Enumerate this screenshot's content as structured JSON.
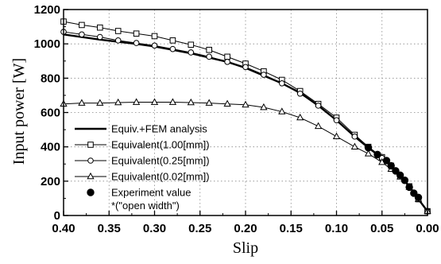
{
  "chart_data": {
    "type": "line",
    "xlabel": "Slip",
    "ylabel": "Input power [W]",
    "xlim": [
      0.4,
      0.0
    ],
    "ylim": [
      0,
      1200
    ],
    "x_reversed": true,
    "x_ticks": [
      "0.40",
      "0.35",
      "0.30",
      "0.25",
      "0.20",
      "0.15",
      "0.10",
      "0.05",
      "0.00"
    ],
    "y_ticks": [
      "0",
      "200",
      "400",
      "600",
      "800",
      "1000",
      "1200"
    ],
    "grid": "dotted",
    "legend_placement": "lower-left",
    "legend_note": "*(\"open width\")",
    "series": [
      {
        "name": "Equiv.+FEM analysis",
        "marker": "none",
        "x": [
          0.4,
          0.38,
          0.36,
          0.34,
          0.32,
          0.3,
          0.28,
          0.26,
          0.24,
          0.22,
          0.2,
          0.18,
          0.16,
          0.14,
          0.12,
          0.1,
          0.08,
          0.065,
          0.05,
          0.04,
          0.03,
          0.02,
          0.01,
          0.0
        ],
        "y": [
          1055,
          1040,
          1025,
          1012,
          1000,
          985,
          965,
          945,
          920,
          895,
          860,
          815,
          770,
          715,
          640,
          555,
          460,
          395,
          335,
          290,
          235,
          170,
          95,
          25
        ]
      },
      {
        "name": "Equivalent(1.00[mm])",
        "marker": "square",
        "x": [
          0.4,
          0.38,
          0.36,
          0.34,
          0.32,
          0.3,
          0.28,
          0.26,
          0.24,
          0.22,
          0.2,
          0.18,
          0.16,
          0.14,
          0.12,
          0.1,
          0.08,
          0.065,
          0.05,
          0.04,
          0.03,
          0.02,
          0.01,
          0.0
        ],
        "y": [
          1130,
          1110,
          1095,
          1075,
          1060,
          1045,
          1020,
          995,
          965,
          925,
          885,
          840,
          790,
          725,
          650,
          570,
          470,
          400,
          340,
          290,
          230,
          170,
          95,
          25
        ]
      },
      {
        "name": "Equivalent(0.25[mm])",
        "marker": "circle",
        "x": [
          0.4,
          0.38,
          0.36,
          0.34,
          0.32,
          0.3,
          0.28,
          0.26,
          0.24,
          0.22,
          0.2,
          0.18,
          0.16,
          0.14,
          0.12,
          0.1,
          0.08,
          0.065,
          0.05,
          0.04,
          0.03,
          0.02,
          0.01,
          0.0
        ],
        "y": [
          1070,
          1055,
          1040,
          1020,
          1005,
          990,
          970,
          950,
          925,
          895,
          865,
          820,
          770,
          710,
          640,
          555,
          460,
          395,
          335,
          290,
          235,
          170,
          95,
          25
        ]
      },
      {
        "name": "Equivalent(0.02[mm])",
        "marker": "triangle",
        "x": [
          0.4,
          0.38,
          0.36,
          0.34,
          0.32,
          0.3,
          0.28,
          0.26,
          0.24,
          0.22,
          0.2,
          0.18,
          0.16,
          0.14,
          0.12,
          0.1,
          0.08,
          0.065,
          0.05,
          0.04,
          0.03,
          0.02,
          0.01,
          0.0
        ],
        "y": [
          650,
          655,
          655,
          658,
          660,
          660,
          660,
          658,
          655,
          650,
          645,
          630,
          605,
          570,
          520,
          460,
          400,
          360,
          310,
          270,
          225,
          165,
          95,
          25
        ]
      },
      {
        "name": "Experiment value",
        "marker": "filled-circle",
        "line": false,
        "x": [
          0.065,
          0.055,
          0.045,
          0.04,
          0.035,
          0.03,
          0.025,
          0.02,
          0.015,
          0.01
        ],
        "y": [
          395,
          355,
          320,
          290,
          260,
          235,
          205,
          165,
          130,
          105
        ]
      }
    ]
  }
}
